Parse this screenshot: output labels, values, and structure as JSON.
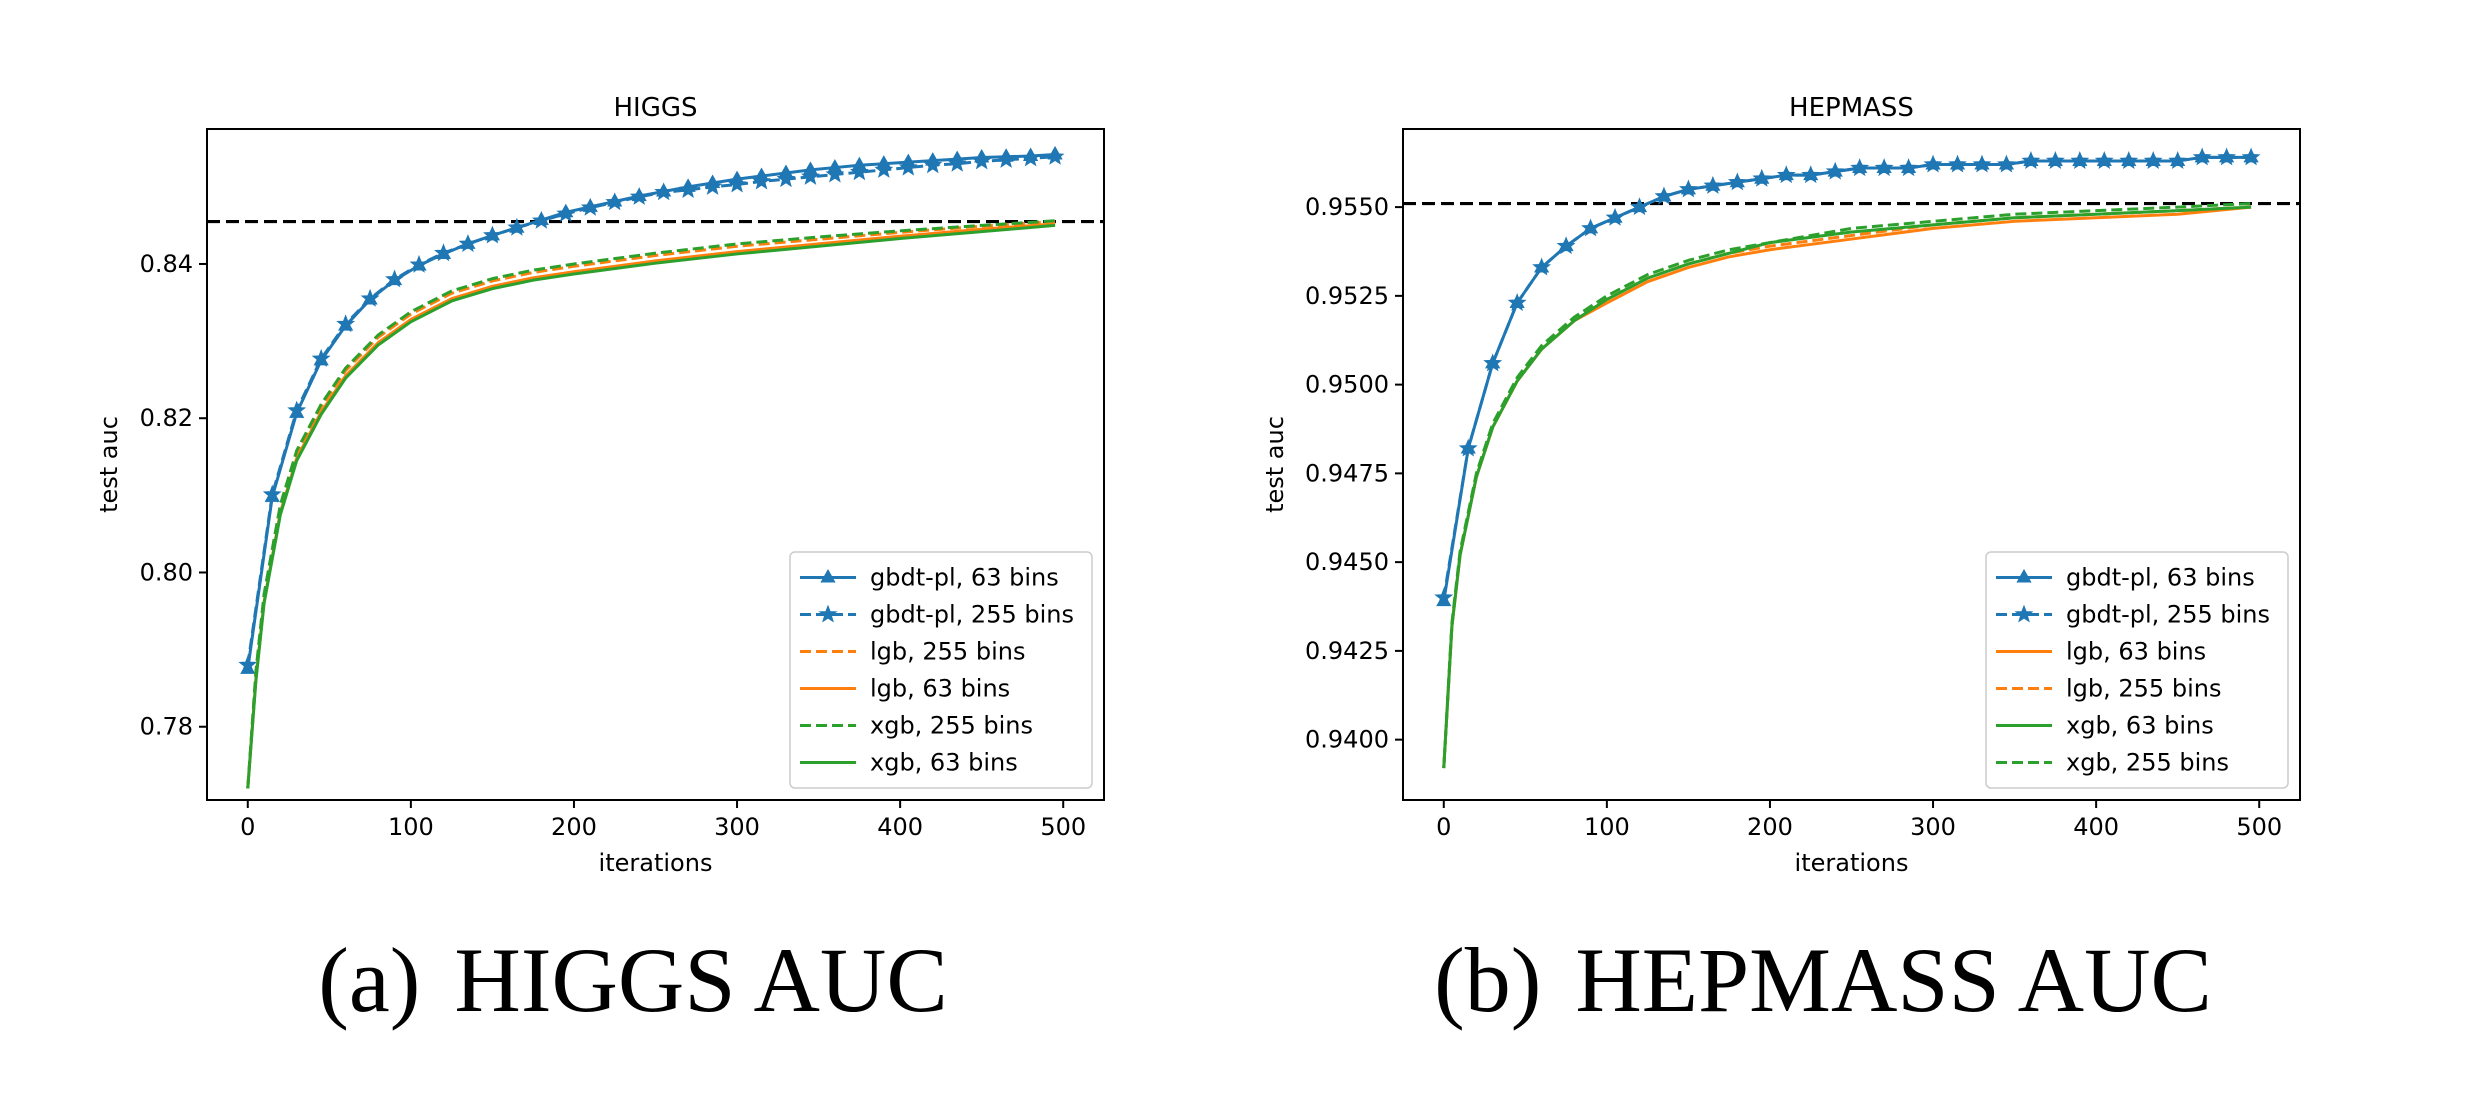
{
  "colors": {
    "blue": "#1f77b4",
    "orange": "#ff7f0e",
    "green": "#2ca02c",
    "reference": "#000000"
  },
  "chart_data": [
    {
      "type": "line",
      "title": "HIGGS",
      "xlabel": "iterations",
      "ylabel": "test auc",
      "xlim": [
        -25,
        525
      ],
      "ylim": [
        0.7705,
        0.8575
      ],
      "xticks": [
        0,
        100,
        200,
        300,
        400,
        500
      ],
      "yticks": [
        0.78,
        0.8,
        0.82,
        0.84
      ],
      "ytick_labels": [
        "0.78",
        "0.80",
        "0.82",
        "0.84"
      ],
      "legend_position": "lower-right",
      "reference_line": {
        "y": 0.8455,
        "style": "dashed",
        "color": "#000000"
      },
      "series": [
        {
          "name": "gbdt-pl, 63 bins",
          "color": "#1f77b4",
          "dash": "solid",
          "marker": "triangle",
          "x": [
            0,
            15,
            30,
            45,
            60,
            75,
            90,
            105,
            120,
            135,
            150,
            165,
            180,
            195,
            210,
            225,
            240,
            255,
            270,
            285,
            300,
            315,
            330,
            345,
            360,
            375,
            390,
            405,
            420,
            435,
            450,
            465,
            480,
            495
          ],
          "y": [
            0.7875,
            0.8098,
            0.8207,
            0.8275,
            0.832,
            0.8354,
            0.8379,
            0.8398,
            0.8413,
            0.8426,
            0.8437,
            0.8447,
            0.8457,
            0.8467,
            0.8474,
            0.8481,
            0.8488,
            0.8494,
            0.85,
            0.8505,
            0.851,
            0.8514,
            0.8518,
            0.8522,
            0.8525,
            0.8528,
            0.853,
            0.8532,
            0.8534,
            0.8536,
            0.8538,
            0.8539,
            0.854,
            0.8542
          ]
        },
        {
          "name": "gbdt-pl, 255 bins",
          "color": "#1f77b4",
          "dash": "dashed",
          "marker": "star",
          "x": [
            0,
            15,
            30,
            45,
            60,
            75,
            90,
            105,
            120,
            135,
            150,
            165,
            180,
            195,
            210,
            225,
            240,
            255,
            270,
            285,
            300,
            315,
            330,
            345,
            360,
            375,
            390,
            405,
            420,
            435,
            450,
            465,
            480,
            495
          ],
          "y": [
            0.788,
            0.8101,
            0.821,
            0.8277,
            0.8322,
            0.8355,
            0.838,
            0.8399,
            0.8414,
            0.8426,
            0.8437,
            0.8447,
            0.8456,
            0.8465,
            0.8473,
            0.848,
            0.8487,
            0.8493,
            0.8496,
            0.85,
            0.8503,
            0.8507,
            0.851,
            0.8513,
            0.8516,
            0.8519,
            0.8522,
            0.8525,
            0.8528,
            0.853,
            0.8533,
            0.8535,
            0.8537,
            0.8539
          ]
        },
        {
          "name": "lgb, 255 bins",
          "color": "#ff7f0e",
          "dash": "dashed",
          "x": [
            0,
            5,
            10,
            20,
            30,
            45,
            60,
            80,
            100,
            125,
            150,
            175,
            200,
            250,
            300,
            350,
            400,
            450,
            495
          ],
          "y": [
            0.772,
            0.787,
            0.797,
            0.8085,
            0.8155,
            0.8215,
            0.8262,
            0.8305,
            0.8335,
            0.8362,
            0.8378,
            0.8389,
            0.8397,
            0.8411,
            0.8423,
            0.8432,
            0.8441,
            0.8449,
            0.8455
          ]
        },
        {
          "name": "lgb, 63 bins",
          "color": "#ff7f0e",
          "dash": "solid",
          "x": [
            0,
            5,
            10,
            20,
            30,
            45,
            60,
            80,
            100,
            125,
            150,
            175,
            200,
            250,
            300,
            350,
            400,
            450,
            495
          ],
          "y": [
            0.772,
            0.7862,
            0.7962,
            0.8078,
            0.8148,
            0.8208,
            0.8255,
            0.8298,
            0.8328,
            0.8355,
            0.8371,
            0.8382,
            0.839,
            0.8404,
            0.8416,
            0.8426,
            0.8436,
            0.8445,
            0.8452
          ]
        },
        {
          "name": "xgb, 255 bins",
          "color": "#2ca02c",
          "dash": "dashed",
          "x": [
            0,
            5,
            10,
            20,
            30,
            45,
            60,
            80,
            100,
            125,
            150,
            175,
            200,
            250,
            300,
            350,
            400,
            450,
            495
          ],
          "y": [
            0.772,
            0.7872,
            0.7972,
            0.8088,
            0.8158,
            0.8218,
            0.8265,
            0.8308,
            0.8338,
            0.8365,
            0.8381,
            0.8392,
            0.84,
            0.8414,
            0.8426,
            0.8435,
            0.8443,
            0.845,
            0.8456
          ]
        },
        {
          "name": "xgb, 63 bins",
          "color": "#2ca02c",
          "dash": "solid",
          "x": [
            0,
            5,
            10,
            20,
            30,
            45,
            60,
            80,
            100,
            125,
            150,
            175,
            200,
            250,
            300,
            350,
            400,
            450,
            495
          ],
          "y": [
            0.772,
            0.786,
            0.796,
            0.8075,
            0.8145,
            0.8205,
            0.8252,
            0.8295,
            0.8325,
            0.8352,
            0.8368,
            0.8379,
            0.8387,
            0.8401,
            0.8413,
            0.8423,
            0.8433,
            0.8442,
            0.845
          ]
        }
      ]
    },
    {
      "type": "line",
      "title": "HEPMASS",
      "xlabel": "iterations",
      "ylabel": "test auc",
      "xlim": [
        -25,
        525
      ],
      "ylim": [
        0.9383,
        0.9572
      ],
      "xticks": [
        0,
        100,
        200,
        300,
        400,
        500
      ],
      "yticks": [
        0.94,
        0.9425,
        0.945,
        0.9475,
        0.95,
        0.9525,
        0.955
      ],
      "ytick_labels": [
        "0.9400",
        "0.9425",
        "0.9450",
        "0.9475",
        "0.9500",
        "0.9525",
        "0.9550"
      ],
      "legend_position": "lower-right",
      "reference_line": {
        "y": 0.9551,
        "style": "dashed",
        "color": "#000000"
      },
      "series": [
        {
          "name": "gbdt-pl, 63 bins",
          "color": "#1f77b4",
          "dash": "solid",
          "marker": "triangle",
          "x": [
            0,
            15,
            30,
            45,
            60,
            75,
            90,
            105,
            120,
            135,
            150,
            165,
            180,
            195,
            210,
            225,
            240,
            255,
            270,
            285,
            300,
            315,
            330,
            345,
            360,
            375,
            390,
            405,
            420,
            435,
            450,
            465,
            480,
            495
          ],
          "y": [
            0.9439,
            0.9482,
            0.9506,
            0.9523,
            0.9533,
            0.9539,
            0.9544,
            0.9547,
            0.955,
            0.9553,
            0.9555,
            0.9556,
            0.9557,
            0.9558,
            0.9559,
            0.9559,
            0.956,
            0.9561,
            0.9561,
            0.9561,
            0.9562,
            0.9562,
            0.9562,
            0.9562,
            0.9563,
            0.9563,
            0.9563,
            0.9563,
            0.9563,
            0.9563,
            0.9563,
            0.9564,
            0.9564,
            0.9564
          ]
        },
        {
          "name": "gbdt-pl, 255 bins",
          "color": "#1f77b4",
          "dash": "dashed",
          "marker": "star",
          "x": [
            0,
            15,
            30,
            45,
            60,
            75,
            90,
            105,
            120,
            135,
            150,
            165,
            180,
            195,
            210,
            225,
            240,
            255,
            270,
            285,
            300,
            315,
            330,
            345,
            360,
            375,
            390,
            405,
            420,
            435,
            450,
            465,
            480,
            495
          ],
          "y": [
            0.944,
            0.9482,
            0.9506,
            0.9523,
            0.9533,
            0.9539,
            0.9544,
            0.9547,
            0.955,
            0.9553,
            0.9555,
            0.9556,
            0.9557,
            0.9558,
            0.9559,
            0.9559,
            0.956,
            0.9561,
            0.9561,
            0.9561,
            0.9562,
            0.9562,
            0.9562,
            0.9562,
            0.9563,
            0.9563,
            0.9563,
            0.9563,
            0.9563,
            0.9563,
            0.9563,
            0.9564,
            0.9564,
            0.9564
          ]
        },
        {
          "name": "lgb, 63 bins",
          "color": "#ff7f0e",
          "dash": "solid",
          "x": [
            0,
            5,
            10,
            20,
            30,
            45,
            60,
            80,
            100,
            125,
            150,
            175,
            200,
            250,
            300,
            350,
            400,
            450,
            495
          ],
          "y": [
            0.9392,
            0.9432,
            0.9452,
            0.9474,
            0.9488,
            0.9501,
            0.951,
            0.9518,
            0.9523,
            0.9529,
            0.9533,
            0.9536,
            0.9538,
            0.9541,
            0.9544,
            0.9546,
            0.9547,
            0.9548,
            0.955
          ]
        },
        {
          "name": "lgb, 255 bins",
          "color": "#ff7f0e",
          "dash": "dashed",
          "x": [
            0,
            5,
            10,
            20,
            30,
            45,
            60,
            80,
            100,
            125,
            150,
            175,
            200,
            250,
            300,
            350,
            400,
            450,
            495
          ],
          "y": [
            0.9392,
            0.9432,
            0.9452,
            0.9474,
            0.9488,
            0.9501,
            0.951,
            0.9518,
            0.9524,
            0.953,
            0.9534,
            0.9537,
            0.9539,
            0.9542,
            0.9545,
            0.9547,
            0.9548,
            0.9549,
            0.955
          ]
        },
        {
          "name": "xgb, 63 bins",
          "color": "#2ca02c",
          "dash": "solid",
          "x": [
            0,
            5,
            10,
            20,
            30,
            45,
            60,
            80,
            100,
            125,
            150,
            175,
            200,
            250,
            300,
            350,
            400,
            450,
            495
          ],
          "y": [
            0.9392,
            0.9432,
            0.9452,
            0.9474,
            0.9488,
            0.9501,
            0.951,
            0.9518,
            0.9524,
            0.953,
            0.9534,
            0.9537,
            0.954,
            0.9543,
            0.9545,
            0.9547,
            0.9548,
            0.9549,
            0.955
          ]
        },
        {
          "name": "xgb, 255 bins",
          "color": "#2ca02c",
          "dash": "dashed",
          "x": [
            0,
            5,
            10,
            20,
            30,
            45,
            60,
            80,
            100,
            125,
            150,
            175,
            200,
            250,
            300,
            350,
            400,
            450,
            495
          ],
          "y": [
            0.9392,
            0.9433,
            0.9453,
            0.9475,
            0.9489,
            0.9502,
            0.9511,
            0.9519,
            0.9525,
            0.9531,
            0.9535,
            0.9538,
            0.954,
            0.9544,
            0.9546,
            0.9548,
            0.9549,
            0.955,
            0.9551
          ]
        }
      ]
    }
  ],
  "captions": [
    {
      "label": "(a)",
      "text": "HIGGS AUC"
    },
    {
      "label": "(b)",
      "text": "HEPMASS AUC"
    }
  ]
}
